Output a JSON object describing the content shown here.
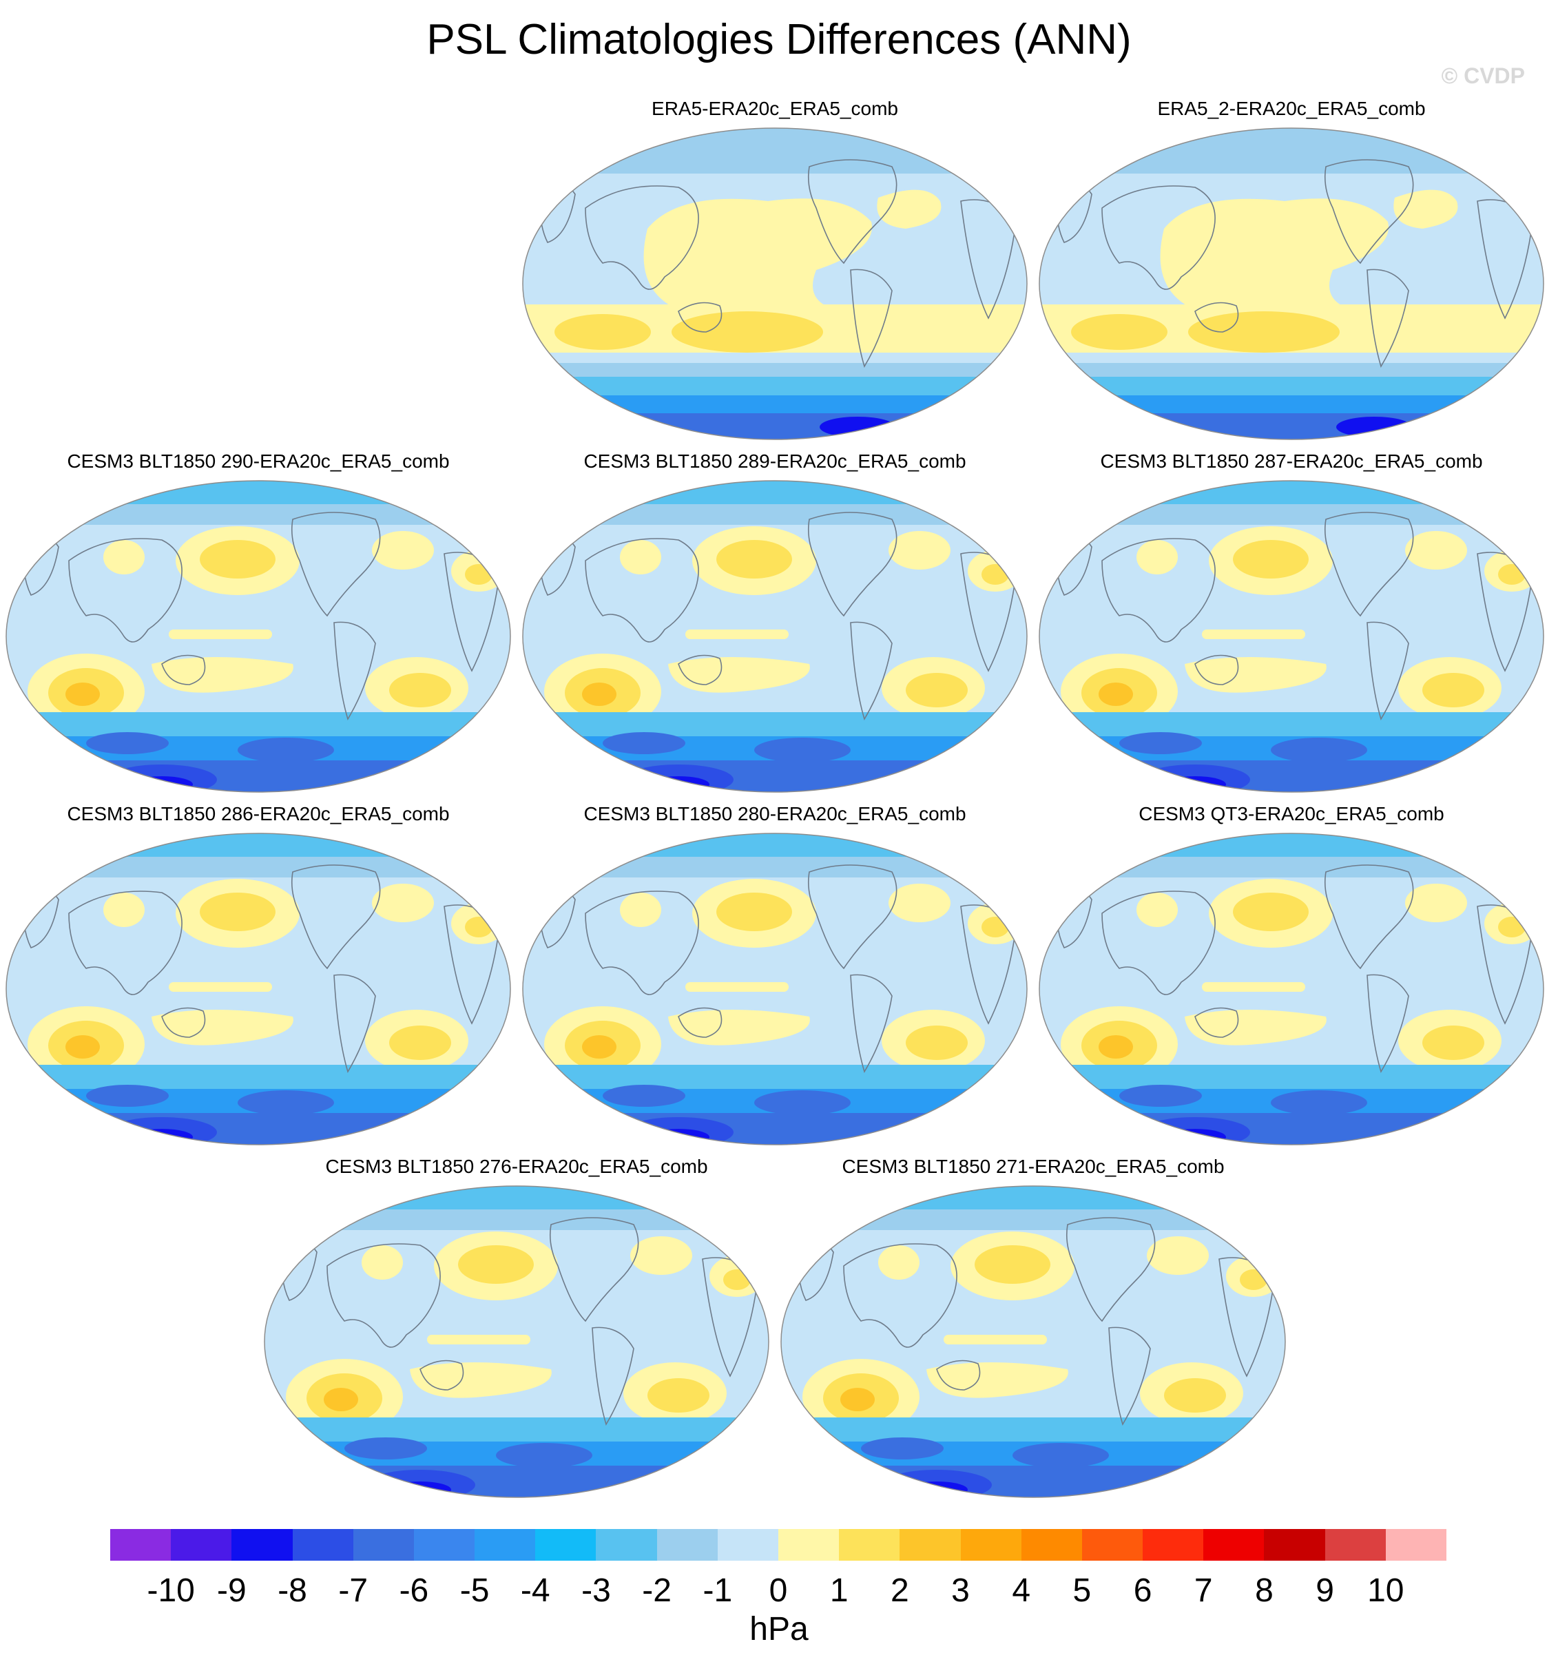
{
  "title": "PSL Climatologies Differences (ANN)",
  "watermark": "© CVDP",
  "panels": [
    {
      "label": "ERA5-ERA20c_ERA5_comb",
      "kind": "reanalysis"
    },
    {
      "label": "ERA5_2-ERA20c_ERA5_comb",
      "kind": "reanalysis"
    },
    {
      "label": "CESM3 BLT1850 290-ERA20c_ERA5_comb",
      "kind": "model"
    },
    {
      "label": "CESM3 BLT1850 289-ERA20c_ERA5_comb",
      "kind": "model"
    },
    {
      "label": "CESM3 BLT1850 287-ERA20c_ERA5_comb",
      "kind": "model"
    },
    {
      "label": "CESM3 BLT1850 286-ERA20c_ERA5_comb",
      "kind": "model"
    },
    {
      "label": "CESM3 BLT1850 280-ERA20c_ERA5_comb",
      "kind": "model"
    },
    {
      "label": "CESM3 QT3-ERA20c_ERA5_comb",
      "kind": "model"
    },
    {
      "label": "CESM3 BLT1850 276-ERA20c_ERA5_comb",
      "kind": "model"
    },
    {
      "label": "CESM3 BLT1850 271-ERA20c_ERA5_comb",
      "kind": "model"
    }
  ],
  "colorbar": {
    "units": "hPa",
    "tick_labels": [
      "-10",
      "-9",
      "-8",
      "-7",
      "-6",
      "-5",
      "-4",
      "-3",
      "-2",
      "-1",
      "0",
      "1",
      "2",
      "3",
      "4",
      "5",
      "6",
      "7",
      "8",
      "9",
      "10"
    ],
    "colors": [
      "#8a2be2",
      "#4b1ae8",
      "#1010f0",
      "#2c4ee6",
      "#3a6fe0",
      "#3a86ee",
      "#2a9cf4",
      "#12bbf8",
      "#58c2f0",
      "#9ccfee",
      "#c6e4f8",
      "#fff7a8",
      "#fde25a",
      "#fdc52a",
      "#fea80c",
      "#fe8a00",
      "#fe5a0c",
      "#fe2c0c",
      "#ee0000",
      "#c80000",
      "#dc4040",
      "#feb4b4"
    ]
  },
  "palette": {
    "ocean_zero_neg": "#c6e4f8",
    "ocean_neg1": "#9ccfee",
    "neg2": "#58c2f0",
    "neg3": "#2a9cf4",
    "neg4": "#3a6fe0",
    "neg5": "#2c4ee6",
    "neg6": "#1010f0",
    "pos0": "#fff7a8",
    "pos1": "#fde25a",
    "pos2": "#fdc52a",
    "coast": "#6e7b8a"
  }
}
